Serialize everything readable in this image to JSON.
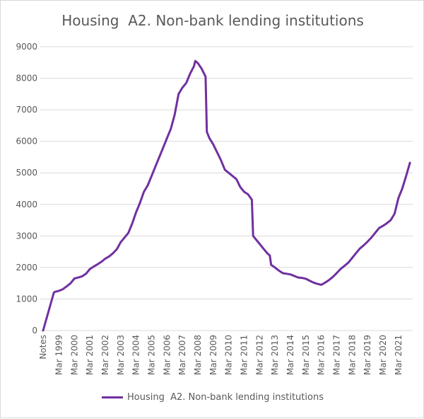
{
  "chart_data": {
    "type": "line",
    "title": "Housing  A2. Non-bank lending institutions",
    "xlabel": "",
    "ylabel": "",
    "ylim": [
      0,
      9000
    ],
    "yticks": [
      0,
      1000,
      2000,
      3000,
      4000,
      5000,
      6000,
      7000,
      8000,
      9000
    ],
    "xtick_labels": [
      "Notes",
      "Mar 1999",
      "Mar 2000",
      "Mar 2001",
      "Mar 2002",
      "Mar 2003",
      "Mar 2004",
      "Mar 2005",
      "Mar 2006",
      "Mar 2007",
      "Mar 2008",
      "Mar 2009",
      "Mar 2010",
      "Mar 2011",
      "Mar 2012",
      "Mar 2013",
      "Mar 2014",
      "Mar 2015",
      "Mar 2016",
      "Mar 2017",
      "Mar 2018",
      "Mar 2019",
      "Mar 2020",
      "Mar 2021"
    ],
    "grid": "horizontal",
    "legend": "bottom",
    "series": [
      {
        "name": "Housing  A2. Non-bank lending institutions",
        "color": "#7030a0",
        "points": [
          [
            "Notes",
            0
          ],
          [
            "Nov 1998",
            1200
          ],
          [
            "Dec 1998",
            1230
          ],
          [
            "Mar 1999",
            1260
          ],
          [
            "Jun 1999",
            1310
          ],
          [
            "Sep 1999",
            1400
          ],
          [
            "Dec 1999",
            1500
          ],
          [
            "Mar 2000",
            1650
          ],
          [
            "Jun 2000",
            1680
          ],
          [
            "Sep 2000",
            1720
          ],
          [
            "Dec 2000",
            1800
          ],
          [
            "Mar 2001",
            1950
          ],
          [
            "Jun 2001",
            2030
          ],
          [
            "Sep 2001",
            2100
          ],
          [
            "Dec 2001",
            2180
          ],
          [
            "Mar 2002",
            2280
          ],
          [
            "Jun 2002",
            2350
          ],
          [
            "Sep 2002",
            2450
          ],
          [
            "Dec 2002",
            2580
          ],
          [
            "Mar 2003",
            2800
          ],
          [
            "Jun 2003",
            2950
          ],
          [
            "Sep 2003",
            3100
          ],
          [
            "Dec 2003",
            3400
          ],
          [
            "Mar 2004",
            3750
          ],
          [
            "Jun 2004",
            4050
          ],
          [
            "Sep 2004",
            4400
          ],
          [
            "Dec 2004",
            4600
          ],
          [
            "Mar 2005",
            4900
          ],
          [
            "Jun 2005",
            5200
          ],
          [
            "Sep 2005",
            5500
          ],
          [
            "Dec 2005",
            5800
          ],
          [
            "Mar 2006",
            6100
          ],
          [
            "Jun 2006",
            6400
          ],
          [
            "Sep 2006",
            6850
          ],
          [
            "Dec 2006",
            7500
          ],
          [
            "Mar 2007",
            7700
          ],
          [
            "Jun 2007",
            7850
          ],
          [
            "Sep 2007",
            8150
          ],
          [
            "Dec 2007",
            8380
          ],
          [
            "Jan 2008",
            8550
          ],
          [
            "Mar 2008",
            8480
          ],
          [
            "Jun 2008",
            8300
          ],
          [
            "Sep 2008",
            8050
          ],
          [
            "Oct 2008",
            6300
          ],
          [
            "Dec 2008",
            6100
          ],
          [
            "Mar 2009",
            5900
          ],
          [
            "Jun 2009",
            5650
          ],
          [
            "Sep 2009",
            5400
          ],
          [
            "Dec 2009",
            5100
          ],
          [
            "Mar 2010",
            5000
          ],
          [
            "Jun 2010",
            4900
          ],
          [
            "Sep 2010",
            4800
          ],
          [
            "Dec 2010",
            4550
          ],
          [
            "Mar 2011",
            4400
          ],
          [
            "Jun 2011",
            4320
          ],
          [
            "Sep 2011",
            4150
          ],
          [
            "Oct 2011",
            3000
          ],
          [
            "Dec 2011",
            2900
          ],
          [
            "Mar 2012",
            2750
          ],
          [
            "Jun 2012",
            2600
          ],
          [
            "Sep 2012",
            2450
          ],
          [
            "Nov 2012",
            2380
          ],
          [
            "Dec 2012",
            2080
          ],
          [
            "Mar 2013",
            2000
          ],
          [
            "Jun 2013",
            1900
          ],
          [
            "Sep 2013",
            1820
          ],
          [
            "Dec 2013",
            1800
          ],
          [
            "Mar 2014",
            1780
          ],
          [
            "Jun 2014",
            1730
          ],
          [
            "Sep 2014",
            1680
          ],
          [
            "Dec 2014",
            1670
          ],
          [
            "Mar 2015",
            1640
          ],
          [
            "Jun 2015",
            1580
          ],
          [
            "Sep 2015",
            1520
          ],
          [
            "Dec 2015",
            1480
          ],
          [
            "Mar 2016",
            1450
          ],
          [
            "Jun 2016",
            1520
          ],
          [
            "Sep 2016",
            1600
          ],
          [
            "Dec 2016",
            1700
          ],
          [
            "Mar 2017",
            1820
          ],
          [
            "Jun 2017",
            1950
          ],
          [
            "Sep 2017",
            2050
          ],
          [
            "Dec 2017",
            2150
          ],
          [
            "Mar 2018",
            2300
          ],
          [
            "Jun 2018",
            2450
          ],
          [
            "Sep 2018",
            2600
          ],
          [
            "Dec 2018",
            2700
          ],
          [
            "Mar 2019",
            2820
          ],
          [
            "Jun 2019",
            2950
          ],
          [
            "Sep 2019",
            3100
          ],
          [
            "Dec 2019",
            3250
          ],
          [
            "Mar 2020",
            3320
          ],
          [
            "Jun 2020",
            3400
          ],
          [
            "Sep 2020",
            3500
          ],
          [
            "Dec 2020",
            3700
          ],
          [
            "Mar 2021",
            4200
          ],
          [
            "Jun 2021",
            4500
          ],
          [
            "Sep 2021",
            4900
          ],
          [
            "Dec 2021",
            5320
          ]
        ]
      }
    ]
  }
}
